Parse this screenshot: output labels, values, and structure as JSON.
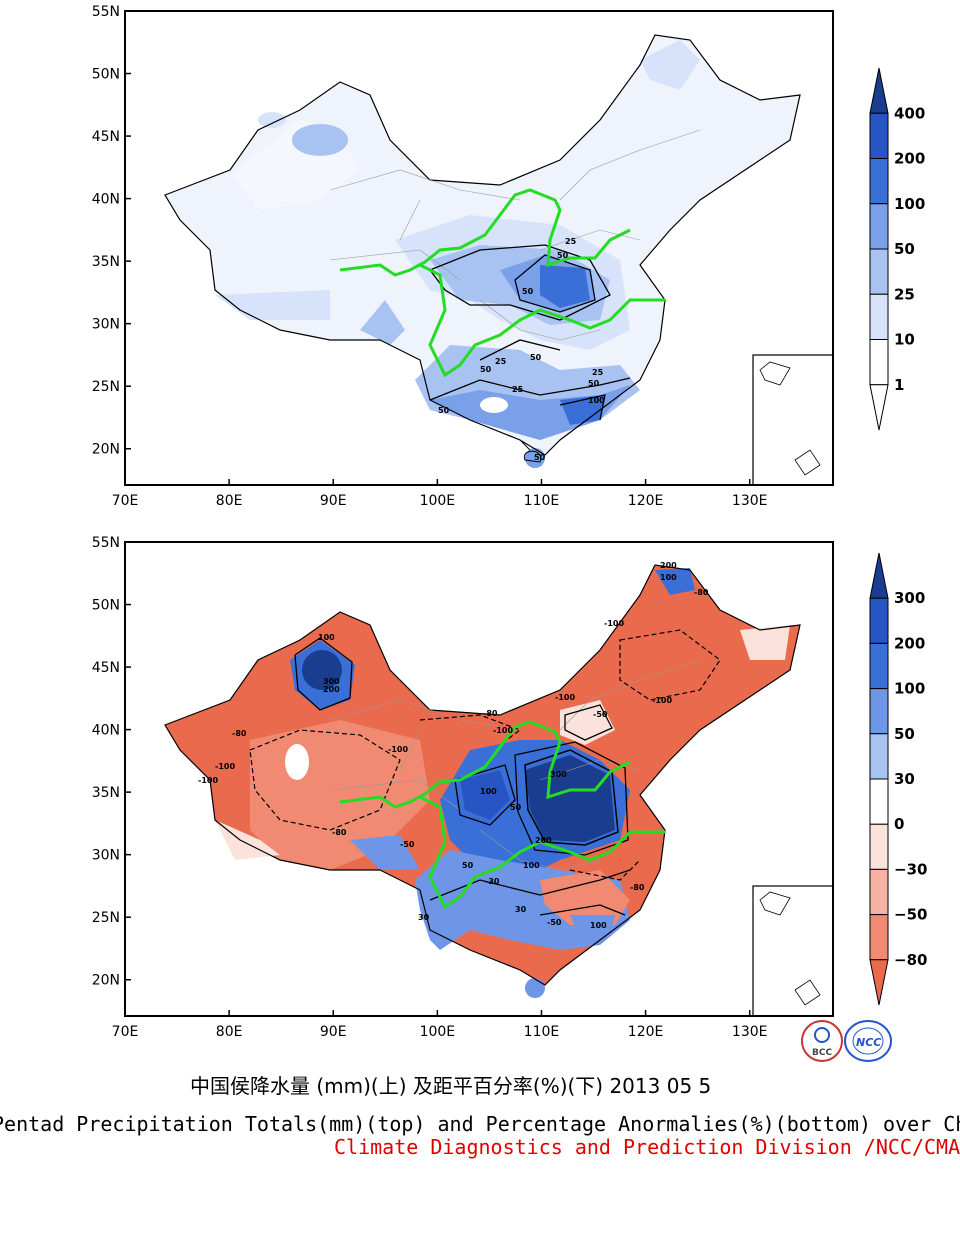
{
  "maps": [
    {
      "id": "top",
      "lat_labels": [
        "55N",
        "50N",
        "45N",
        "40N",
        "35N",
        "30N",
        "25N",
        "20N"
      ],
      "lon_labels": [
        "70E",
        "80E",
        "90E",
        "100E",
        "110E",
        "120E",
        "130E"
      ],
      "colorbar_labels": [
        "400",
        "200",
        "100",
        "50",
        "25",
        "10",
        "1"
      ],
      "colorbar_colors": [
        "#1a3d8f",
        "#2855c4",
        "#3a6fd8",
        "#7aa0ea",
        "#a8c2f2",
        "#d6e3fa",
        "#ffffff",
        "#ffffff"
      ],
      "contour_labels": [
        "25",
        "50",
        "50",
        "25",
        "50",
        "25",
        "50",
        "25",
        "50",
        "100",
        "50",
        "50"
      ]
    },
    {
      "id": "bottom",
      "lat_labels": [
        "55N",
        "50N",
        "45N",
        "40N",
        "35N",
        "30N",
        "25N",
        "20N"
      ],
      "lon_labels": [
        "70E",
        "80E",
        "90E",
        "100E",
        "110E",
        "120E",
        "130E"
      ],
      "colorbar_labels": [
        "300",
        "200",
        "100",
        "50",
        "30",
        "0",
        "−30",
        "−50",
        "−80"
      ],
      "colorbar_colors": [
        "#1a3d8f",
        "#2855c4",
        "#3a6fd8",
        "#6f95e6",
        "#a8c2f2",
        "#ffffff",
        "#fbe3dc",
        "#f6b3a3",
        "#f08a72",
        "#ea6a4e"
      ],
      "contour_labels": [
        "200",
        "100",
        "-80",
        "-100",
        "100",
        "300",
        "200",
        "-100",
        "-80",
        "-100",
        "-100",
        "-100",
        "-100",
        "-80",
        "-100",
        "-50",
        "300",
        "100",
        "50",
        "50",
        "200",
        "100",
        "30",
        "-50",
        "-80",
        "30",
        "-30",
        "100",
        "-50",
        "-80"
      ]
    }
  ],
  "captions": {
    "title_cn": "中国侯降水量 (mm)(上) 及距平百分率(%)(下) 2013 05 5",
    "title_en": "Pentad Precipitation Totals(mm)(top) and Percentage Anormalies(%)(bottom) over China",
    "credit": "Climate Diagnostics and Prediction Division /NCC/CMA"
  },
  "logos": {
    "left": "BCC",
    "right": "NCC"
  }
}
